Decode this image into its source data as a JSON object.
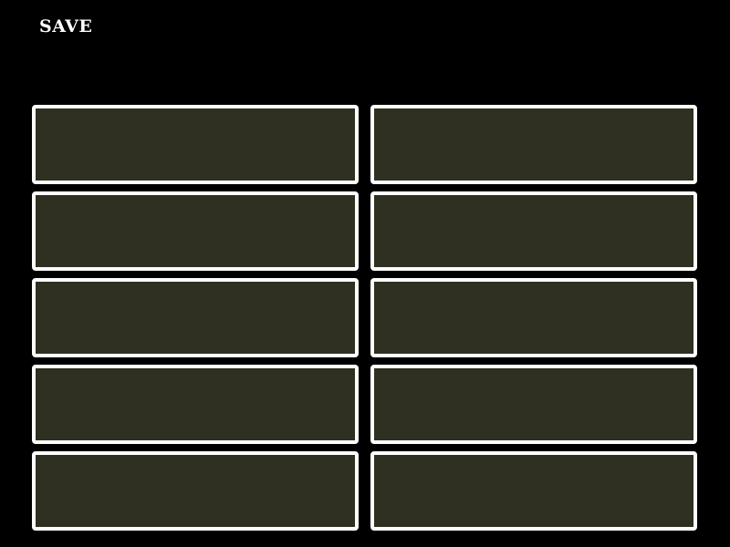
{
  "header": {
    "title": "SAVE"
  },
  "colors": {
    "background": "#000000",
    "slot_fill": "#303022",
    "slot_border": "#ffffff"
  },
  "slots": [
    {
      "label": ""
    },
    {
      "label": ""
    },
    {
      "label": ""
    },
    {
      "label": ""
    },
    {
      "label": ""
    },
    {
      "label": ""
    },
    {
      "label": ""
    },
    {
      "label": ""
    },
    {
      "label": ""
    },
    {
      "label": ""
    }
  ]
}
